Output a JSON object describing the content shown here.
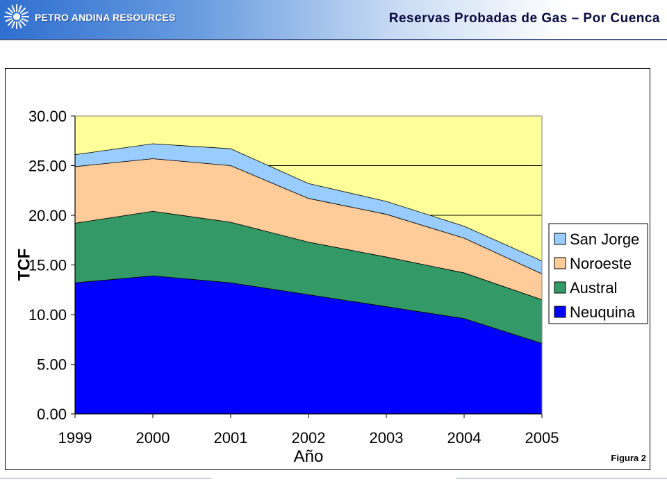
{
  "header": {
    "brand": "PETRO ANDINA RESOURCES",
    "title": "Reservas Probadas de Gas – Por Cuenca",
    "logo_icon": "sunburst-icon"
  },
  "figure_label": "Figura 2",
  "colors": {
    "plot_background": "#ffff99",
    "neuquina": "#0000ff",
    "austral": "#339966",
    "noroeste": "#ffcc99",
    "san_jorge": "#99ccff"
  },
  "chart_data": {
    "type": "area",
    "stacked": true,
    "categories": [
      "1999",
      "2000",
      "2001",
      "2002",
      "2003",
      "2004",
      "2005"
    ],
    "series": [
      {
        "name": "Neuquina",
        "color": "#0000ff",
        "values": [
          13.2,
          13.9,
          13.2,
          12.0,
          10.8,
          9.6,
          7.1
        ]
      },
      {
        "name": "Austral",
        "color": "#339966",
        "values": [
          6.0,
          6.5,
          6.1,
          5.3,
          5.0,
          4.6,
          4.4
        ]
      },
      {
        "name": "Noroeste",
        "color": "#ffcc99",
        "values": [
          5.7,
          5.3,
          5.7,
          4.4,
          4.3,
          3.5,
          2.6
        ]
      },
      {
        "name": "San Jorge",
        "color": "#99ccff",
        "values": [
          1.2,
          1.5,
          1.7,
          1.5,
          1.3,
          1.2,
          1.3
        ]
      }
    ],
    "xlabel": "Año",
    "ylabel": "TCF",
    "ylim": [
      0,
      30
    ],
    "yticks": [
      "0.00",
      "5.00",
      "10.00",
      "15.00",
      "20.00",
      "25.00",
      "30.00"
    ],
    "grid": "horizontal",
    "legend": {
      "position": "right",
      "entries": [
        "San Jorge",
        "Noroeste",
        "Austral",
        "Neuquina"
      ]
    }
  }
}
